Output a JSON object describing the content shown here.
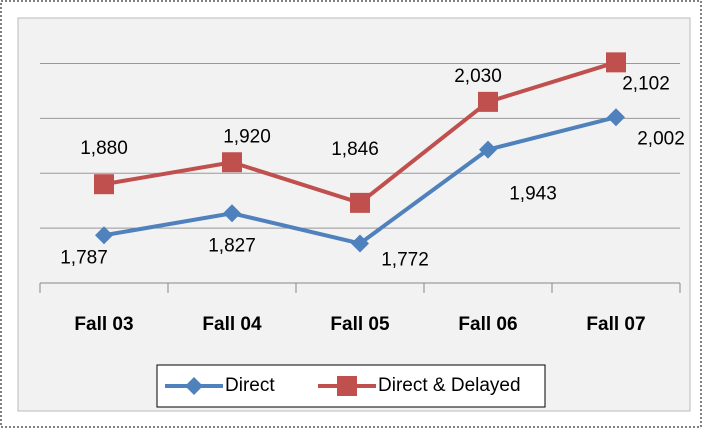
{
  "chart_data": {
    "type": "line",
    "categories": [
      "Fall 03",
      "Fall 04",
      "Fall 05",
      "Fall 06",
      "Fall 07"
    ],
    "series": [
      {
        "name": "Direct",
        "color": "#4f81bd",
        "marker": "diamond",
        "values": [
          1787,
          1827,
          1772,
          1943,
          2002
        ],
        "value_labels": [
          "1,787",
          "1,827",
          "1,772",
          "1,943",
          "2,002"
        ]
      },
      {
        "name": "Direct & Delayed",
        "color": "#c0504d",
        "marker": "square",
        "values": [
          1880,
          1920,
          1846,
          2030,
          2102
        ],
        "value_labels": [
          "1,880",
          "1,920",
          "1,846",
          "2,030",
          "2,102"
        ]
      }
    ],
    "ylim": [
      1700,
      2150
    ],
    "yticks": [
      1700,
      1800,
      1900,
      2000,
      2100
    ],
    "grid": true,
    "legend": "bottom"
  }
}
